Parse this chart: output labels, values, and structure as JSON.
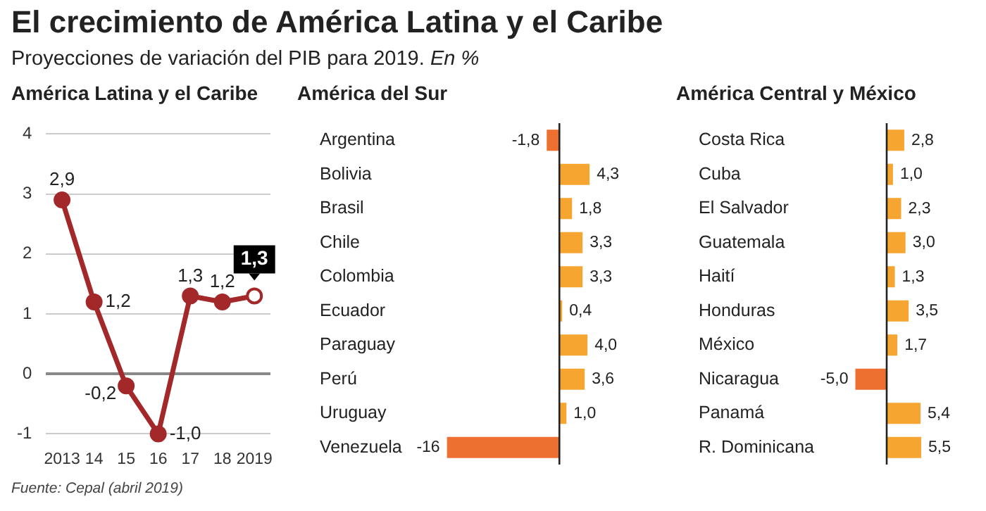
{
  "chart_data": [
    {
      "type": "line",
      "title": "El crecimiento de América Latina y el Caribe",
      "subtitle": "Proyecciones de variación del PIB para 2019. En %",
      "annotations": [
        "América Latina y el Caribe",
        "Fuente: Cepal (abril 2019)"
      ],
      "categories": [
        "2013",
        "14",
        "15",
        "16",
        "17",
        "18",
        "2019"
      ],
      "series": [
        {
          "color": "#a3282a",
          "values": [
            2.9,
            1.2,
            -0.2,
            -1.0,
            1.3,
            1.2,
            1.3
          ],
          "value_labels": [
            "2,9",
            "1,2",
            "-0,2",
            "-1,0",
            "1,3",
            "1,2",
            "1,3"
          ]
        }
      ],
      "ylim": [
        -1,
        4
      ],
      "yticks": [
        -1,
        0,
        1,
        2,
        3,
        4
      ],
      "grid": "y",
      "marker": "circle",
      "line_style": "solid"
    },
    {
      "type": "bar",
      "orientation": "horizontal",
      "title": "América del Sur",
      "categories": [
        "Argentina",
        "Bolivia",
        "Brasil",
        "Chile",
        "Colombia",
        "Ecuador",
        "Paraguay",
        "Perú",
        "Uruguay",
        "Venezuela"
      ],
      "values": [
        -1.8,
        4.3,
        1.8,
        3.3,
        3.3,
        0.4,
        4.0,
        3.6,
        1.0,
        -16
      ],
      "value_labels": [
        "-1,8",
        "4,3",
        "1,8",
        "3,3",
        "3,3",
        "0,4",
        "4,0",
        "3,6",
        "1,0",
        "-16"
      ],
      "colors": [
        "#ee7030",
        "#f6a531",
        "#f6a531",
        "#f6a531",
        "#f6a531",
        "#f6a531",
        "#f6a531",
        "#f6a531",
        "#f6a531",
        "#ee7030"
      ],
      "tick_labels": "y"
    },
    {
      "type": "bar",
      "orientation": "horizontal",
      "title": "América Central y México",
      "categories": [
        "Costa Rica",
        "Cuba",
        "El Salvador",
        "Guatemala",
        "Haití",
        "Honduras",
        "México",
        "Nicaragua",
        "Panamá",
        "R. Dominicana"
      ],
      "values": [
        2.8,
        1.0,
        2.3,
        3.0,
        1.3,
        3.5,
        1.7,
        -5.0,
        5.4,
        5.5
      ],
      "value_labels": [
        "2,8",
        "1,0",
        "2,3",
        "3,0",
        "1,3",
        "3,5",
        "1,7",
        "-5,0",
        "5,4",
        "5,5"
      ],
      "colors": [
        "#f6a531",
        "#f6a531",
        "#f6a531",
        "#f6a531",
        "#f6a531",
        "#f6a531",
        "#f6a531",
        "#ee7030",
        "#f6a531",
        "#f6a531"
      ],
      "tick_labels": "y"
    }
  ]
}
